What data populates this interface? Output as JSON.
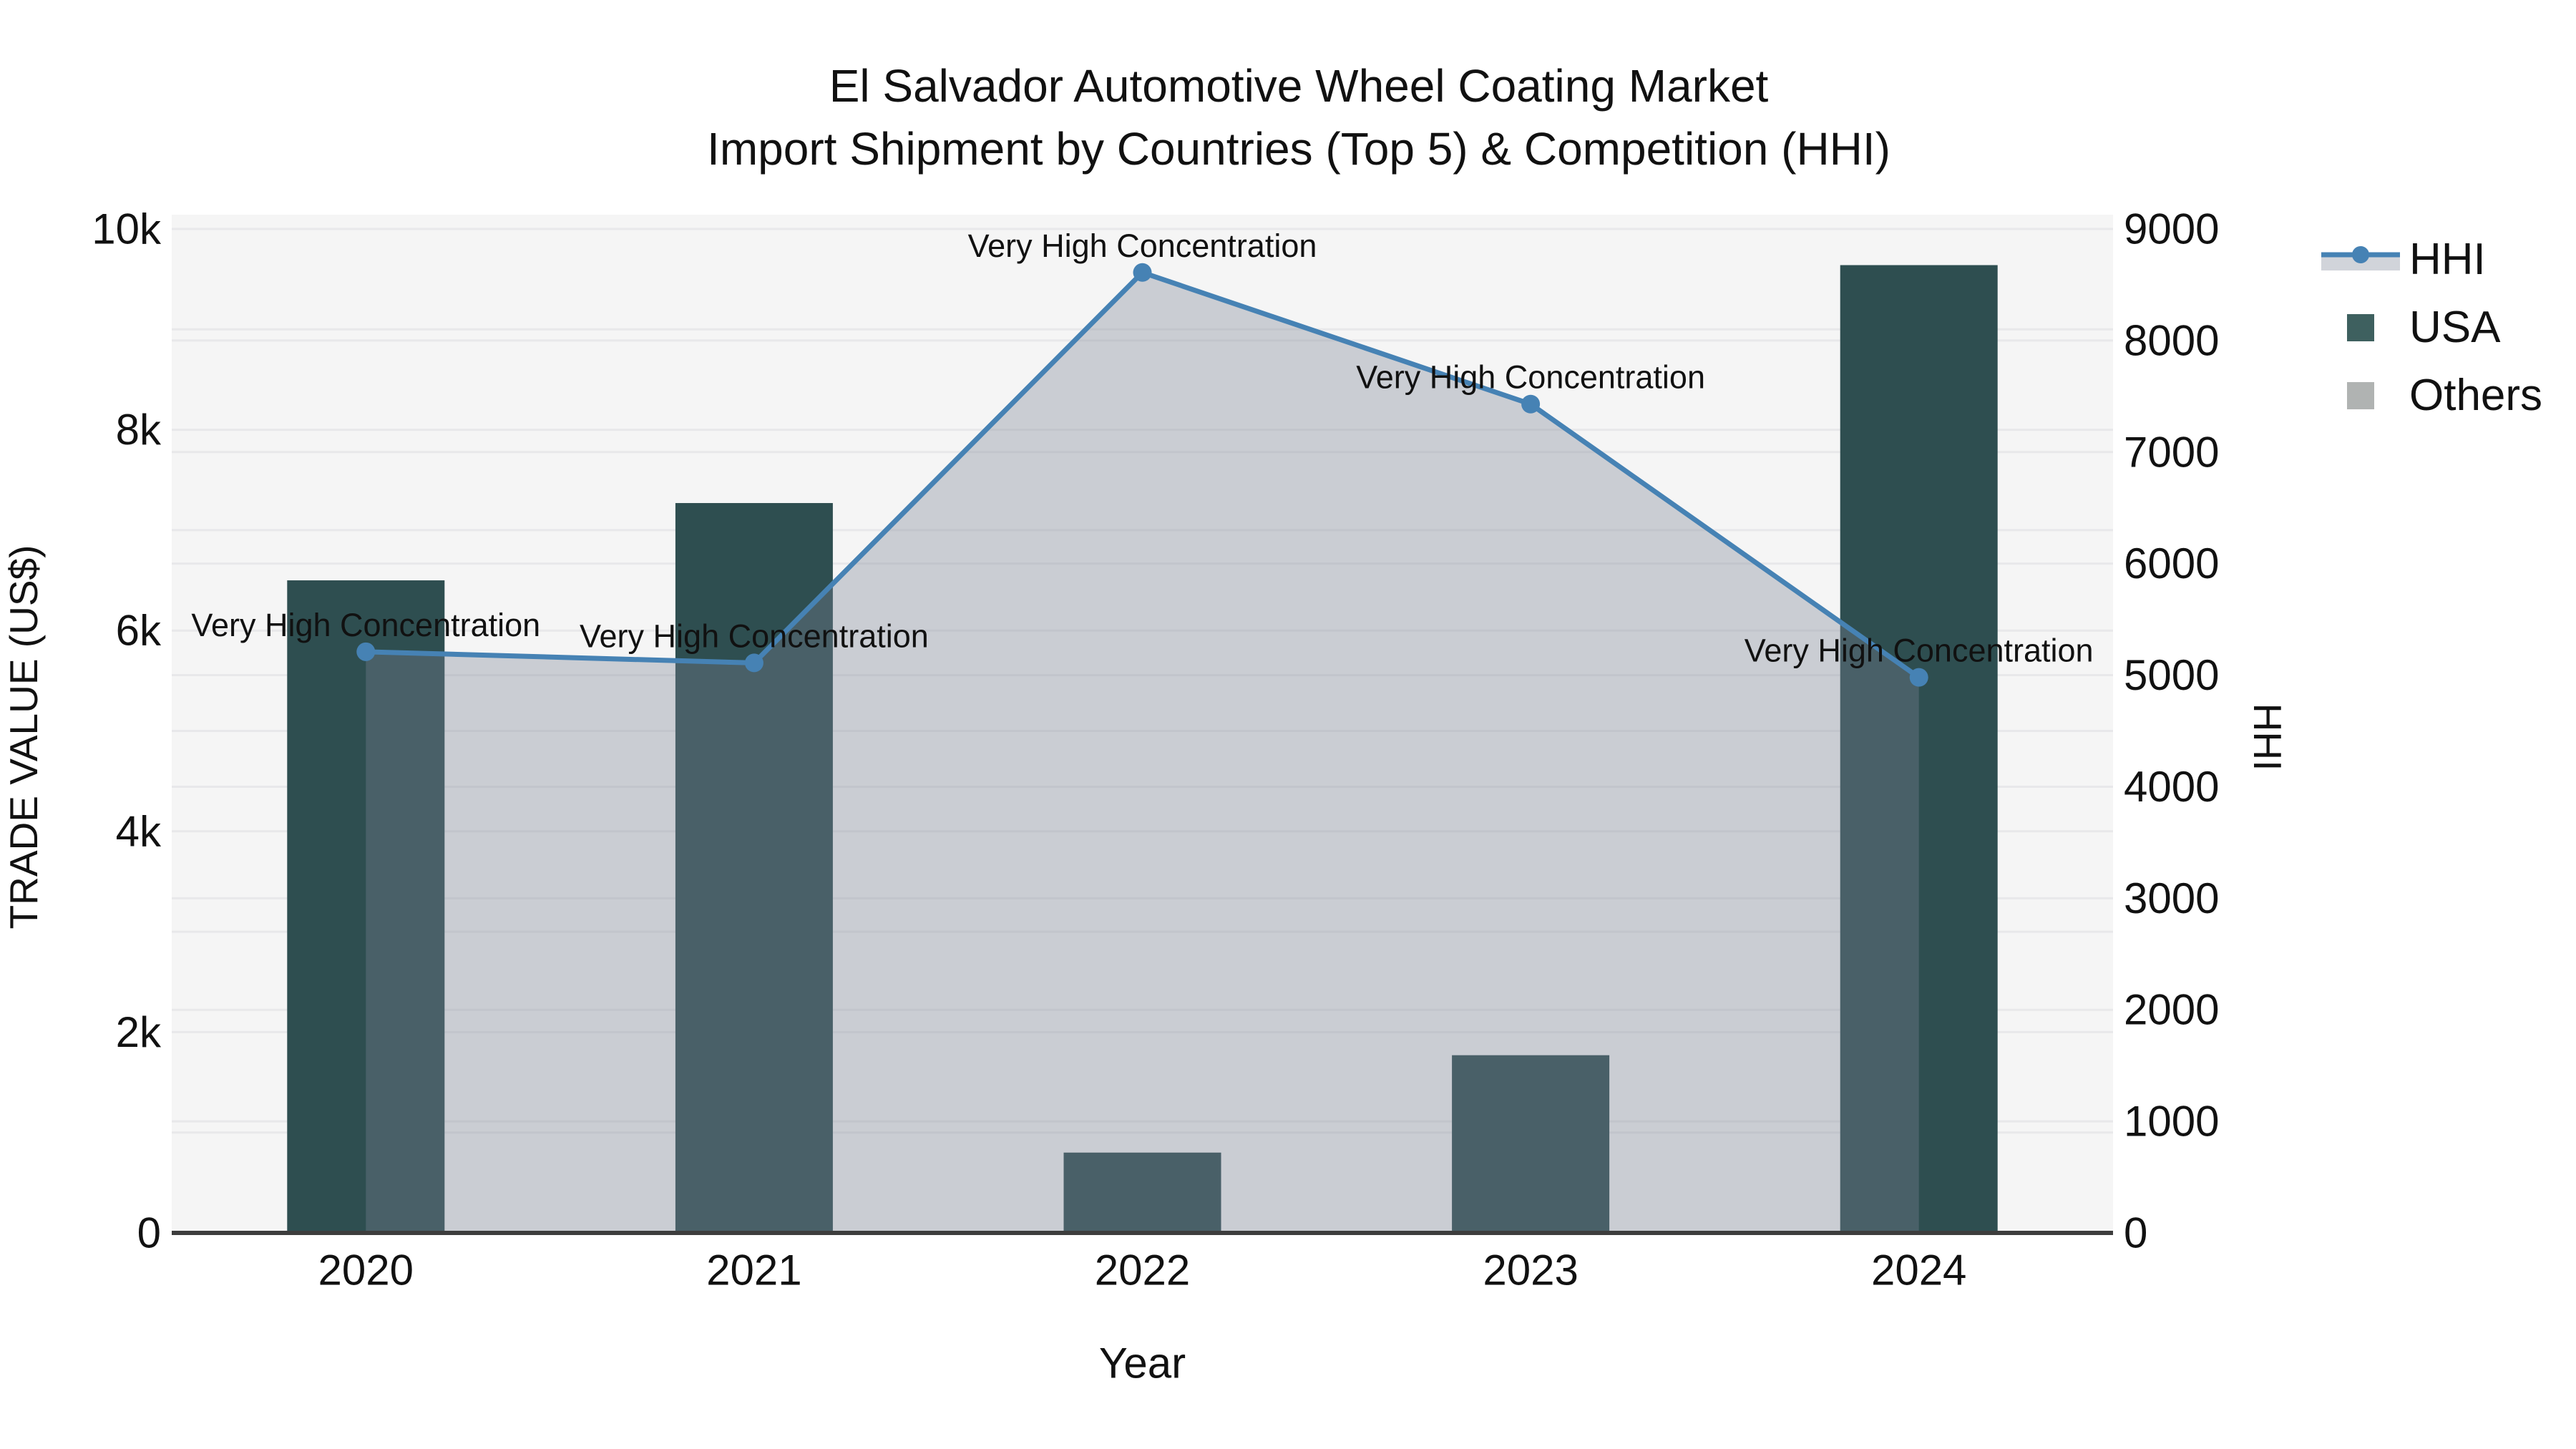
{
  "title": {
    "line1": "El Salvador Automotive Wheel Coating Market",
    "line2": "Import Shipment by Countries (Top 5) & Competition (HHI)"
  },
  "legend": {
    "items": [
      {
        "label": "HHI"
      },
      {
        "label": "USA"
      },
      {
        "label": "Others"
      }
    ]
  },
  "colors": {
    "plot_bg": "#f5f5f5",
    "grid": "#e8e8ea",
    "axis_line": "#3d3d3d",
    "bar_usa": "#2e4e50",
    "legend_usa_swatch": "#3e605f",
    "legend_others_swatch": "#b0b3b2",
    "hhi_line": "#4682b4",
    "hhi_area_fill": "rgba(124,133,150,0.35)",
    "legend_band": "#d1d4da"
  },
  "chart_data": {
    "type": "bar+line",
    "categories": [
      "2020",
      "2021",
      "2022",
      "2023",
      "2024"
    ],
    "series": [
      {
        "name": "HHI",
        "type": "line",
        "yaxis": "right",
        "color": "#4682b4",
        "values": [
          5210,
          5110,
          8610,
          7430,
          4980
        ]
      },
      {
        "name": "USA",
        "type": "bar",
        "yaxis": "left",
        "color": "#2e4e50",
        "values": [
          6500,
          7270,
          800,
          1770,
          9640
        ]
      },
      {
        "name": "Others",
        "type": "bar",
        "yaxis": "left",
        "color": "#b0b3b2",
        "values": []
      }
    ],
    "annotations": [
      {
        "year": "2020",
        "text": "Very High Concentration"
      },
      {
        "year": "2021",
        "text": "Very High Concentration"
      },
      {
        "year": "2022",
        "text": "Very High Concentration"
      },
      {
        "year": "2023",
        "text": "Very High Concentration"
      },
      {
        "year": "2024",
        "text": "Very High Concentration"
      }
    ],
    "xlabel": "Year",
    "axes": {
      "left": {
        "title": "TRADE VALUE (US$)",
        "range": [
          0,
          10000
        ],
        "tick_values": [
          0,
          2000,
          4000,
          6000,
          8000,
          10000
        ],
        "tick_labels": [
          "0",
          "2k",
          "4k",
          "6k",
          "8k",
          "10k"
        ],
        "grid_step": 1000
      },
      "right": {
        "title": "HHI",
        "range": [
          0,
          9000
        ],
        "tick_values": [
          0,
          1000,
          2000,
          3000,
          4000,
          5000,
          6000,
          7000,
          8000,
          9000
        ],
        "tick_labels": [
          "0",
          "1000",
          "2000",
          "3000",
          "4000",
          "5000",
          "6000",
          "7000",
          "8000",
          "9000"
        ],
        "grid_step": 1000
      }
    },
    "legend_position": "top-right",
    "grid": true
  }
}
